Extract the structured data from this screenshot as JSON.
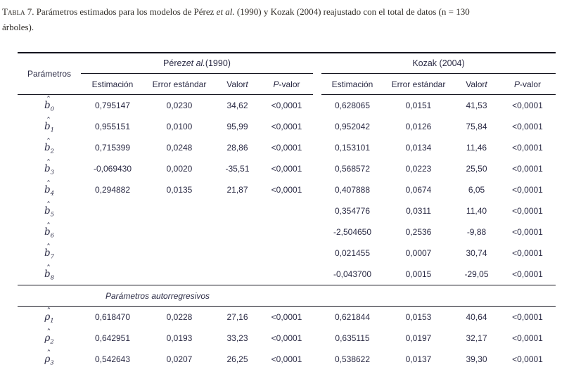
{
  "caption": {
    "parts": [
      {
        "t": "Tabla 7.",
        "style": "sc"
      },
      {
        "t": " Parámetros estimados para los modelos de Pérez "
      },
      {
        "t": "et al.",
        "style": "i"
      },
      {
        "t": " (1990) y Kozak (2004) reajustado con el total de datos (n = 130"
      },
      {
        "br": true
      },
      {
        "t": "árboles)."
      }
    ]
  },
  "colors": {
    "table_text": "#2b2b45",
    "rule": "#14141e",
    "caption_text": "#2e2a25",
    "background": "#ffffff"
  },
  "table": {
    "param_header": "Parámetros",
    "section_label": "Parámetros autorregresivos",
    "column_keys": [
      "estimacion",
      "error-estandar",
      "valor-t",
      "p-valor"
    ],
    "groups": [
      {
        "key": "perez",
        "title_parts": [
          {
            "t": "Pérez "
          },
          {
            "t": "et al.",
            "style": "i"
          },
          {
            "t": " (1990)"
          }
        ],
        "subheaders": [
          [
            {
              "t": "Estimación"
            }
          ],
          [
            {
              "t": "Error estándar"
            }
          ],
          [
            {
              "t": "Valor "
            },
            {
              "t": "t",
              "style": "i"
            }
          ],
          [
            {
              "t": "P",
              "style": "i"
            },
            {
              "t": "-valor"
            }
          ]
        ]
      },
      {
        "key": "kozak",
        "title_parts": [
          {
            "t": "Kozak (2004)"
          }
        ],
        "subheaders": [
          [
            {
              "t": "Estimación"
            }
          ],
          [
            {
              "t": "Error estándar"
            }
          ],
          [
            {
              "t": "Valor "
            },
            {
              "t": "t",
              "style": "i"
            }
          ],
          [
            {
              "t": "P",
              "style": "i"
            },
            {
              "t": "-valor"
            }
          ]
        ]
      }
    ],
    "rows": [
      {
        "id": "b0",
        "param": {
          "letter": "b",
          "hat": true,
          "sub": "0"
        },
        "perez": [
          "0,795147",
          "0,0230",
          "34,62",
          "<0,0001"
        ],
        "kozak": [
          "0,628065",
          "0,0151",
          "41,53",
          "<0,0001"
        ]
      },
      {
        "id": "b1",
        "param": {
          "letter": "b",
          "hat": true,
          "sub": "1"
        },
        "perez": [
          "0,955151",
          "0,0100",
          "95,99",
          "<0,0001"
        ],
        "kozak": [
          "0,952042",
          "0,0126",
          "75,84",
          "<0,0001"
        ]
      },
      {
        "id": "b2",
        "param": {
          "letter": "b",
          "hat": true,
          "sub": "2"
        },
        "perez": [
          "0,715399",
          "0,0248",
          "28,86",
          "<0,0001"
        ],
        "kozak": [
          "0,153101",
          "0,0134",
          "11,46",
          "<0,0001"
        ]
      },
      {
        "id": "b3",
        "param": {
          "letter": "b",
          "hat": true,
          "sub": "3"
        },
        "perez": [
          "-0,069430",
          "0,0020",
          "-35,51",
          "<0,0001"
        ],
        "kozak": [
          "0,568572",
          "0,0223",
          "25,50",
          "<0,0001"
        ]
      },
      {
        "id": "b4",
        "param": {
          "letter": "b",
          "hat": true,
          "sub": "4"
        },
        "perez": [
          "0,294882",
          "0,0135",
          "21,87",
          "<0,0001"
        ],
        "kozak": [
          "0,407888",
          "0,0674",
          "6,05",
          "<0,0001"
        ]
      },
      {
        "id": "b5",
        "param": {
          "letter": "b",
          "hat": true,
          "sub": "5"
        },
        "perez": [
          "",
          "",
          "",
          ""
        ],
        "kozak": [
          "0,354776",
          "0,0311",
          "11,40",
          "<0,0001"
        ]
      },
      {
        "id": "b6",
        "param": {
          "letter": "b",
          "hat": true,
          "sub": "6"
        },
        "perez": [
          "",
          "",
          "",
          ""
        ],
        "kozak": [
          "-2,504650",
          "0,2536",
          "-9,88",
          "<0,0001"
        ]
      },
      {
        "id": "b7",
        "param": {
          "letter": "b",
          "hat": true,
          "sub": "7"
        },
        "perez": [
          "",
          "",
          "",
          ""
        ],
        "kozak": [
          "0,021455",
          "0,0007",
          "30,74",
          "<0,0001"
        ]
      },
      {
        "id": "b8",
        "param": {
          "letter": "b",
          "hat": true,
          "sub": "8"
        },
        "perez": [
          "",
          "",
          "",
          ""
        ],
        "kozak": [
          "-0,043700",
          "0,0015",
          "-29,05",
          "<0,0001"
        ]
      }
    ],
    "rho_rows": [
      {
        "id": "rho1",
        "param": {
          "letter": "ρ",
          "hat": true,
          "sub": "1"
        },
        "perez": [
          "0,618470",
          "0,0228",
          "27,16",
          "<0,0001"
        ],
        "kozak": [
          "0,621844",
          "0,0153",
          "40,64",
          "<0,0001"
        ]
      },
      {
        "id": "rho2",
        "param": {
          "letter": "ρ",
          "hat": true,
          "sub": "2"
        },
        "perez": [
          "0,642951",
          "0,0193",
          "33,23",
          "<0,0001"
        ],
        "kozak": [
          "0,635115",
          "0,0197",
          "32,17",
          "<0,0001"
        ]
      },
      {
        "id": "rho3",
        "param": {
          "letter": "ρ",
          "hat": true,
          "sub": "3"
        },
        "perez": [
          "0,542643",
          "0,0207",
          "26,25",
          "<0,0001"
        ],
        "kozak": [
          "0,538622",
          "0,0137",
          "39,30",
          "<0,0001"
        ]
      }
    ]
  }
}
